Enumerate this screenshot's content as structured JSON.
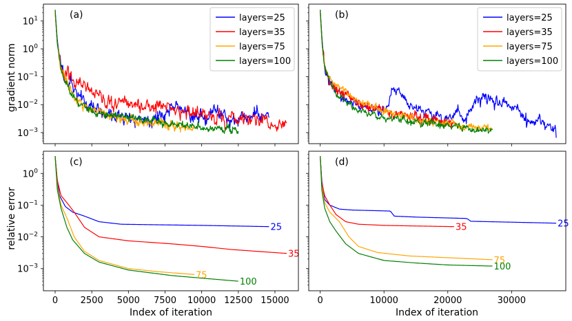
{
  "figure": {
    "shared_xlabel": "Index of iteration",
    "top_ylabel": "gradient norm",
    "bottom_ylabel": "relative error",
    "series_colors": {
      "25": "#0000ff",
      "35": "#ff0000",
      "75": "#ffa500",
      "100": "#008000"
    }
  },
  "chart_data": [
    {
      "id": "a",
      "panel_label": "(a)",
      "type": "line",
      "yscale": "log",
      "xlim": [
        -800,
        16600
      ],
      "ylim": [
        0.0004,
        40
      ],
      "xticks": [
        0,
        2500,
        5000,
        7500,
        10000,
        12500,
        15000
      ],
      "xtick_labels": [
        "0",
        "2500",
        "5000",
        "7500",
        "10000",
        "12500",
        "15000"
      ],
      "ytick_labels": [
        "10^1",
        "10^0",
        "10^-1",
        "10^-2",
        "10^-3"
      ],
      "ylabel": "gradient norm",
      "legend": {
        "position": "upper right",
        "entries": [
          "layers=25",
          "layers=35",
          "layers=75",
          "layers=100"
        ]
      },
      "series": [
        {
          "name": "layers=25",
          "color": "#0000ff",
          "noise": 0.35,
          "seed": 11,
          "points": [
            [
              0,
              25
            ],
            [
              150,
              2
            ],
            [
              400,
              0.2
            ],
            [
              800,
              0.09
            ],
            [
              1500,
              0.025
            ],
            [
              2500,
              0.008
            ],
            [
              4000,
              0.004
            ],
            [
              5000,
              0.003
            ],
            [
              6500,
              0.003
            ],
            [
              7500,
              0.005
            ],
            [
              8500,
              0.008
            ],
            [
              9500,
              0.004
            ],
            [
              10500,
              0.003
            ],
            [
              11000,
              0.008
            ],
            [
              12000,
              0.003
            ],
            [
              13000,
              0.003
            ],
            [
              14000,
              0.005
            ],
            [
              14600,
              0.003
            ]
          ]
        },
        {
          "name": "layers=35",
          "color": "#ff0000",
          "noise": 0.35,
          "seed": 23,
          "points": [
            [
              0,
              20
            ],
            [
              150,
              1.5
            ],
            [
              400,
              0.3
            ],
            [
              800,
              0.15
            ],
            [
              1500,
              0.06
            ],
            [
              2500,
              0.02
            ],
            [
              4000,
              0.01
            ],
            [
              6000,
              0.01
            ],
            [
              7500,
              0.008
            ],
            [
              9000,
              0.005
            ],
            [
              10500,
              0.004
            ],
            [
              12000,
              0.003
            ],
            [
              13500,
              0.003
            ],
            [
              14500,
              0.002
            ],
            [
              15300,
              0.0015
            ],
            [
              15800,
              0.0012
            ]
          ]
        },
        {
          "name": "layers=75",
          "color": "#ffa500",
          "noise": 0.22,
          "seed": 37,
          "points": [
            [
              0,
              22
            ],
            [
              150,
              1.5
            ],
            [
              400,
              0.2
            ],
            [
              800,
              0.06
            ],
            [
              1500,
              0.015
            ],
            [
              2500,
              0.006
            ],
            [
              3500,
              0.004
            ],
            [
              5000,
              0.0028
            ],
            [
              7000,
              0.0022
            ],
            [
              8500,
              0.0018
            ],
            [
              9500,
              0.0013
            ]
          ]
        },
        {
          "name": "layers=100",
          "color": "#008000",
          "noise": 0.2,
          "seed": 53,
          "points": [
            [
              0,
              25
            ],
            [
              150,
              1.5
            ],
            [
              400,
              0.2
            ],
            [
              800,
              0.05
            ],
            [
              1500,
              0.012
            ],
            [
              2500,
              0.006
            ],
            [
              4000,
              0.004
            ],
            [
              6000,
              0.003
            ],
            [
              8000,
              0.0022
            ],
            [
              10000,
              0.0016
            ],
            [
              11500,
              0.0013
            ],
            [
              12500,
              0.0012
            ]
          ]
        }
      ]
    },
    {
      "id": "b",
      "panel_label": "(b)",
      "type": "line",
      "yscale": "log",
      "xlim": [
        -1800,
        38500
      ],
      "ylim": [
        0.0004,
        40
      ],
      "xticks": [
        0,
        10000,
        20000,
        30000
      ],
      "xtick_labels": [
        "0",
        "10000",
        "20000",
        "30000"
      ],
      "ytick_labels": [],
      "legend": {
        "position": "upper right",
        "entries": [
          "layers=25",
          "layers=35",
          "layers=75",
          "layers=100"
        ]
      },
      "series": [
        {
          "name": "layers=25",
          "color": "#0000ff",
          "noise": 0.3,
          "seed": 71,
          "points": [
            [
              0,
              25
            ],
            [
              300,
              2
            ],
            [
              700,
              0.2
            ],
            [
              1500,
              0.08
            ],
            [
              3000,
              0.02
            ],
            [
              5000,
              0.01
            ],
            [
              7000,
              0.008
            ],
            [
              9000,
              0.006
            ],
            [
              10500,
              0.008
            ],
            [
              11500,
              0.04
            ],
            [
              12500,
              0.03
            ],
            [
              14000,
              0.01
            ],
            [
              16000,
              0.006
            ],
            [
              18000,
              0.004
            ],
            [
              20000,
              0.003
            ],
            [
              21500,
              0.006
            ],
            [
              22500,
              0.003
            ],
            [
              24000,
              0.008
            ],
            [
              25500,
              0.02
            ],
            [
              27000,
              0.015
            ],
            [
              29000,
              0.01
            ],
            [
              31000,
              0.005
            ],
            [
              33000,
              0.002
            ],
            [
              35000,
              0.0025
            ],
            [
              36500,
              0.0015
            ],
            [
              37000,
              0.0008
            ]
          ]
        },
        {
          "name": "layers=35",
          "color": "#ff0000",
          "noise": 0.22,
          "seed": 83,
          "points": [
            [
              0,
              20
            ],
            [
              300,
              1.5
            ],
            [
              700,
              0.2
            ],
            [
              1500,
              0.07
            ],
            [
              3000,
              0.03
            ],
            [
              5000,
              0.015
            ],
            [
              7000,
              0.009
            ],
            [
              9000,
              0.007
            ],
            [
              11000,
              0.005
            ],
            [
              13000,
              0.004
            ],
            [
              15000,
              0.004
            ],
            [
              17000,
              0.003
            ],
            [
              19000,
              0.0025
            ],
            [
              21000,
              0.002
            ]
          ]
        },
        {
          "name": "layers=75",
          "color": "#ffa500",
          "noise": 0.2,
          "seed": 97,
          "points": [
            [
              0,
              22
            ],
            [
              300,
              1.5
            ],
            [
              700,
              0.2
            ],
            [
              1500,
              0.07
            ],
            [
              3000,
              0.04
            ],
            [
              5000,
              0.02
            ],
            [
              7000,
              0.01
            ],
            [
              9000,
              0.006
            ],
            [
              11000,
              0.005
            ],
            [
              13000,
              0.004
            ],
            [
              15000,
              0.003
            ],
            [
              18000,
              0.0025
            ],
            [
              21000,
              0.002
            ],
            [
              24000,
              0.0017
            ],
            [
              27000,
              0.0013
            ]
          ]
        },
        {
          "name": "layers=100",
          "color": "#008000",
          "noise": 0.17,
          "seed": 109,
          "points": [
            [
              0,
              25
            ],
            [
              300,
              1.5
            ],
            [
              700,
              0.2
            ],
            [
              1500,
              0.07
            ],
            [
              3000,
              0.02
            ],
            [
              5000,
              0.008
            ],
            [
              7000,
              0.005
            ],
            [
              9000,
              0.004
            ],
            [
              12000,
              0.003
            ],
            [
              15000,
              0.0025
            ],
            [
              18000,
              0.002
            ],
            [
              21000,
              0.0016
            ],
            [
              24000,
              0.0014
            ],
            [
              27000,
              0.0012
            ]
          ]
        }
      ]
    },
    {
      "id": "c",
      "panel_label": "(c)",
      "type": "line",
      "yscale": "log",
      "xlim": [
        -800,
        16600
      ],
      "ylim": [
        0.0002,
        5
      ],
      "xticks": [
        0,
        2500,
        5000,
        7500,
        10000,
        12500,
        15000
      ],
      "xtick_labels": [
        "0",
        "2500",
        "5000",
        "7500",
        "10000",
        "12500",
        "15000"
      ],
      "ytick_labels": [
        "10^0",
        "10^-1",
        "10^-2",
        "10^-3"
      ],
      "ylabel": "relative error",
      "series": [
        {
          "name": "layers=25",
          "label": "25",
          "color": "#0000ff",
          "points": [
            [
              0,
              3.5
            ],
            [
              120,
              0.8
            ],
            [
              300,
              0.2
            ],
            [
              700,
              0.09
            ],
            [
              1200,
              0.06
            ],
            [
              2000,
              0.045
            ],
            [
              3000,
              0.03
            ],
            [
              4500,
              0.025
            ],
            [
              7000,
              0.024
            ],
            [
              10000,
              0.023
            ],
            [
              14600,
              0.021
            ]
          ]
        },
        {
          "name": "layers=35",
          "label": "35",
          "color": "#ff0000",
          "points": [
            [
              0,
              3.5
            ],
            [
              150,
              0.6
            ],
            [
              400,
              0.2
            ],
            [
              800,
              0.12
            ],
            [
              1300,
              0.06
            ],
            [
              2000,
              0.02
            ],
            [
              3000,
              0.01
            ],
            [
              5000,
              0.0075
            ],
            [
              8000,
              0.006
            ],
            [
              10000,
              0.005
            ],
            [
              12000,
              0.004
            ],
            [
              15800,
              0.003
            ]
          ]
        },
        {
          "name": "layers=75",
          "label": "75",
          "color": "#ffa500",
          "points": [
            [
              0,
              3.5
            ],
            [
              150,
              0.4
            ],
            [
              400,
              0.1
            ],
            [
              800,
              0.04
            ],
            [
              1300,
              0.01
            ],
            [
              2000,
              0.0035
            ],
            [
              3000,
              0.0018
            ],
            [
              5000,
              0.001
            ],
            [
              7000,
              0.0008
            ],
            [
              9500,
              0.00065
            ]
          ]
        },
        {
          "name": "layers=100",
          "label": "100",
          "color": "#008000",
          "points": [
            [
              0,
              3.5
            ],
            [
              150,
              0.3
            ],
            [
              400,
              0.08
            ],
            [
              800,
              0.02
            ],
            [
              1200,
              0.008
            ],
            [
              2000,
              0.003
            ],
            [
              3000,
              0.0016
            ],
            [
              5000,
              0.0009
            ],
            [
              8000,
              0.0006
            ],
            [
              10000,
              0.0005
            ],
            [
              12500,
              0.0004
            ]
          ]
        }
      ]
    },
    {
      "id": "d",
      "panel_label": "(d)",
      "type": "line",
      "yscale": "log",
      "xlim": [
        -1800,
        38500
      ],
      "ylim": [
        0.0002,
        5
      ],
      "xticks": [
        0,
        10000,
        20000,
        30000
      ],
      "xtick_labels": [
        "0",
        "10000",
        "20000",
        "30000"
      ],
      "ytick_labels": [],
      "series": [
        {
          "name": "layers=25",
          "label": "25",
          "color": "#0000ff",
          "points": [
            [
              0,
              3.5
            ],
            [
              250,
              0.6
            ],
            [
              700,
              0.15
            ],
            [
              1500,
              0.1
            ],
            [
              3000,
              0.075
            ],
            [
              5000,
              0.07
            ],
            [
              11000,
              0.065
            ],
            [
              11600,
              0.045
            ],
            [
              15000,
              0.042
            ],
            [
              23000,
              0.038
            ],
            [
              23600,
              0.031
            ],
            [
              30000,
              0.029
            ],
            [
              37000,
              0.027
            ]
          ]
        },
        {
          "name": "layers=35",
          "label": "35",
          "color": "#ff0000",
          "points": [
            [
              0,
              3.5
            ],
            [
              250,
              0.5
            ],
            [
              700,
              0.2
            ],
            [
              1500,
              0.1
            ],
            [
              2500,
              0.05
            ],
            [
              4000,
              0.03
            ],
            [
              6000,
              0.025
            ],
            [
              10000,
              0.023
            ],
            [
              15000,
              0.022
            ],
            [
              21000,
              0.021
            ]
          ]
        },
        {
          "name": "layers=75",
          "label": "75",
          "color": "#ffa500",
          "points": [
            [
              0,
              3.5
            ],
            [
              250,
              0.4
            ],
            [
              700,
              0.12
            ],
            [
              1500,
              0.06
            ],
            [
              3000,
              0.03
            ],
            [
              4500,
              0.01
            ],
            [
              6000,
              0.005
            ],
            [
              9000,
              0.0032
            ],
            [
              14000,
              0.0025
            ],
            [
              20000,
              0.0022
            ],
            [
              27000,
              0.0019
            ]
          ]
        },
        {
          "name": "layers=100",
          "label": "100",
          "color": "#008000",
          "points": [
            [
              0,
              3.5
            ],
            [
              250,
              0.3
            ],
            [
              700,
              0.08
            ],
            [
              1500,
              0.03
            ],
            [
              2500,
              0.015
            ],
            [
              4000,
              0.006
            ],
            [
              6000,
              0.003
            ],
            [
              10000,
              0.0018
            ],
            [
              15000,
              0.0015
            ],
            [
              20000,
              0.0013
            ],
            [
              27000,
              0.0012
            ]
          ]
        }
      ]
    }
  ]
}
